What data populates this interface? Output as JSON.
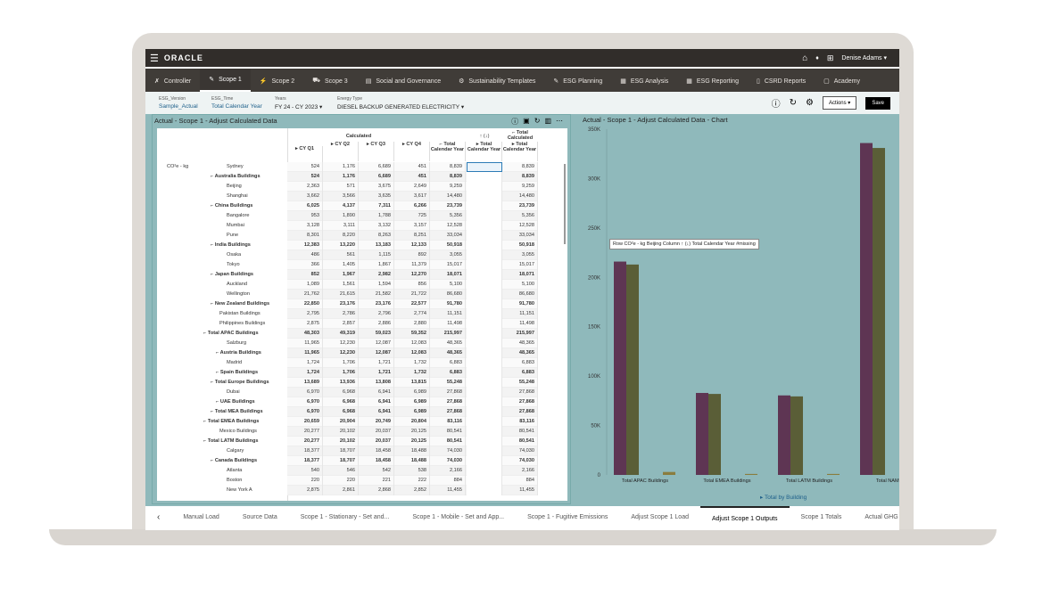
{
  "header": {
    "brand": "ORACLE",
    "user": "Denise Adams ▾"
  },
  "nav": {
    "tabs": [
      {
        "label": "Controller",
        "icon": "✗"
      },
      {
        "label": "Scope 1",
        "icon": "✎",
        "active": true
      },
      {
        "label": "Scope 2",
        "icon": "⚡"
      },
      {
        "label": "Scope 3",
        "icon": "⛟"
      },
      {
        "label": "Social and Governance",
        "icon": "▤"
      },
      {
        "label": "Sustainability Templates",
        "icon": "⚙"
      },
      {
        "label": "ESG Planning",
        "icon": "✎"
      },
      {
        "label": "ESG Analysis",
        "icon": "▦"
      },
      {
        "label": "ESG Reporting",
        "icon": "▦"
      },
      {
        "label": "CSRD Reports",
        "icon": "▯"
      },
      {
        "label": "Academy",
        "icon": "▢"
      }
    ]
  },
  "pov": {
    "items": [
      {
        "label": "ESG_Version",
        "value": "Sample_Actual"
      },
      {
        "label": "ESG_Time",
        "value": "Total Calendar Year"
      },
      {
        "label": "Years",
        "value": "FY 24 - CY 2023 ▾"
      },
      {
        "label": "Energy Type",
        "value": "DIESEL BACKUP GENERATED ELECTRICITY ▾"
      }
    ],
    "actions": "Actions ▾",
    "save": "Save"
  },
  "grid": {
    "title": "Actual - Scope 1 - Adjust Calculated Data",
    "row_dim": "CO²e - kg",
    "group_header": "Calculated",
    "columns": [
      "▸ CY Q1",
      "▸ CY Q2",
      "▸ CY Q3",
      "▸ CY Q4",
      "⌐ Total Calendar Year",
      "▸ Total Calendar Year",
      "▸ Total Calendar Year"
    ],
    "col6_top": "↑ (↓)",
    "col7_top": "⌐ Total Calculated",
    "rows": [
      {
        "name": "Sydney",
        "lvl": 3,
        "b": false,
        "v": [
          "524",
          "1,176",
          "6,689",
          "451",
          "8,839",
          "",
          "8,839"
        ]
      },
      {
        "name": "Australia Buildings",
        "lvl": 2,
        "b": true,
        "v": [
          "524",
          "1,176",
          "6,689",
          "451",
          "8,839",
          "",
          "8,839"
        ]
      },
      {
        "name": "Beijing",
        "lvl": 3,
        "b": false,
        "v": [
          "2,363",
          "571",
          "3,675",
          "2,649",
          "9,259",
          "",
          "9,259"
        ]
      },
      {
        "name": "Shanghai",
        "lvl": 3,
        "b": false,
        "v": [
          "3,662",
          "3,566",
          "3,635",
          "3,617",
          "14,480",
          "",
          "14,480"
        ]
      },
      {
        "name": "China Buildings",
        "lvl": 2,
        "b": true,
        "v": [
          "6,025",
          "4,137",
          "7,311",
          "6,266",
          "23,739",
          "",
          "23,739"
        ]
      },
      {
        "name": "Bangalore",
        "lvl": 3,
        "b": false,
        "v": [
          "953",
          "1,890",
          "1,788",
          "725",
          "5,356",
          "",
          "5,356"
        ]
      },
      {
        "name": "Mumbai",
        "lvl": 3,
        "b": false,
        "v": [
          "3,128",
          "3,111",
          "3,132",
          "3,157",
          "12,528",
          "",
          "12,528"
        ]
      },
      {
        "name": "Pune",
        "lvl": 3,
        "b": false,
        "v": [
          "8,301",
          "8,220",
          "8,263",
          "8,251",
          "33,034",
          "",
          "33,034"
        ]
      },
      {
        "name": "India Buildings",
        "lvl": 2,
        "b": true,
        "v": [
          "12,383",
          "13,220",
          "13,183",
          "12,133",
          "50,918",
          "",
          "50,918"
        ]
      },
      {
        "name": "Osaka",
        "lvl": 3,
        "b": false,
        "v": [
          "486",
          "561",
          "1,115",
          "892",
          "3,055",
          "",
          "3,055"
        ]
      },
      {
        "name": "Tokyo",
        "lvl": 3,
        "b": false,
        "v": [
          "366",
          "1,405",
          "1,867",
          "11,379",
          "15,017",
          "",
          "15,017"
        ]
      },
      {
        "name": "Japan Buildings",
        "lvl": 2,
        "b": true,
        "v": [
          "852",
          "1,967",
          "2,982",
          "12,270",
          "18,071",
          "",
          "18,071"
        ]
      },
      {
        "name": "Auckland",
        "lvl": 3,
        "b": false,
        "v": [
          "1,089",
          "1,561",
          "1,594",
          "856",
          "5,100",
          "",
          "5,100"
        ]
      },
      {
        "name": "Wellington",
        "lvl": 3,
        "b": false,
        "v": [
          "21,762",
          "21,615",
          "21,582",
          "21,722",
          "86,680",
          "",
          "86,680"
        ]
      },
      {
        "name": "New Zealand Buildings",
        "lvl": 2,
        "b": true,
        "v": [
          "22,850",
          "23,176",
          "23,176",
          "22,577",
          "91,780",
          "",
          "91,780"
        ]
      },
      {
        "name": "Pakistan Buildings",
        "lvl": 2.5,
        "b": false,
        "v": [
          "2,795",
          "2,786",
          "2,796",
          "2,774",
          "11,151",
          "",
          "11,151"
        ]
      },
      {
        "name": "Philippines Buildings",
        "lvl": 2.5,
        "b": false,
        "v": [
          "2,875",
          "2,857",
          "2,886",
          "2,880",
          "11,498",
          "",
          "11,498"
        ]
      },
      {
        "name": "Total APAC Buildings",
        "lvl": 1,
        "b": true,
        "v": [
          "48,303",
          "49,319",
          "59,023",
          "59,352",
          "215,997",
          "",
          "215,997"
        ]
      },
      {
        "name": "Salzburg",
        "lvl": 3,
        "b": false,
        "v": [
          "11,965",
          "12,230",
          "12,087",
          "12,083",
          "48,365",
          "",
          "48,365"
        ]
      },
      {
        "name": "Austria Buildings",
        "lvl": 2.3,
        "b": true,
        "v": [
          "11,965",
          "12,230",
          "12,087",
          "12,083",
          "48,365",
          "",
          "48,365"
        ]
      },
      {
        "name": "Madrid",
        "lvl": 3,
        "b": false,
        "v": [
          "1,724",
          "1,706",
          "1,721",
          "1,732",
          "6,883",
          "",
          "6,883"
        ]
      },
      {
        "name": "Spain Buildings",
        "lvl": 2.3,
        "b": true,
        "v": [
          "1,724",
          "1,706",
          "1,721",
          "1,732",
          "6,883",
          "",
          "6,883"
        ]
      },
      {
        "name": "Total Europe Buildings",
        "lvl": 2,
        "b": true,
        "v": [
          "13,689",
          "13,936",
          "13,808",
          "13,815",
          "55,248",
          "",
          "55,248"
        ]
      },
      {
        "name": "Dubai",
        "lvl": 3,
        "b": false,
        "v": [
          "6,970",
          "6,968",
          "6,941",
          "6,989",
          "27,868",
          "",
          "27,868"
        ]
      },
      {
        "name": "UAE Buildings",
        "lvl": 2.3,
        "b": true,
        "v": [
          "6,970",
          "6,968",
          "6,941",
          "6,989",
          "27,868",
          "",
          "27,868"
        ]
      },
      {
        "name": "Total MEA Buildings",
        "lvl": 2,
        "b": true,
        "v": [
          "6,970",
          "6,968",
          "6,941",
          "6,989",
          "27,868",
          "",
          "27,868"
        ]
      },
      {
        "name": "Total EMEA Buildings",
        "lvl": 1,
        "b": true,
        "v": [
          "20,659",
          "20,904",
          "20,749",
          "20,804",
          "83,116",
          "",
          "83,116"
        ]
      },
      {
        "name": "Mexico Buildings",
        "lvl": 2.5,
        "b": false,
        "v": [
          "20,277",
          "20,102",
          "20,037",
          "20,125",
          "80,541",
          "",
          "80,541"
        ]
      },
      {
        "name": "Total LATM Buildings",
        "lvl": 1,
        "b": true,
        "v": [
          "20,277",
          "20,102",
          "20,037",
          "20,125",
          "80,541",
          "",
          "80,541"
        ]
      },
      {
        "name": "Calgary",
        "lvl": 3,
        "b": false,
        "v": [
          "18,377",
          "18,707",
          "18,458",
          "18,488",
          "74,030",
          "",
          "74,030"
        ]
      },
      {
        "name": "Canada Buildings",
        "lvl": 2,
        "b": true,
        "v": [
          "18,377",
          "18,707",
          "18,458",
          "18,488",
          "74,030",
          "",
          "74,030"
        ]
      },
      {
        "name": "Atlanta",
        "lvl": 3,
        "b": false,
        "v": [
          "540",
          "546",
          "542",
          "538",
          "2,166",
          "",
          "2,166"
        ]
      },
      {
        "name": "Boston",
        "lvl": 3,
        "b": false,
        "v": [
          "220",
          "220",
          "221",
          "222",
          "884",
          "",
          "884"
        ]
      },
      {
        "name": "New York A",
        "lvl": 3,
        "b": false,
        "v": [
          "2,875",
          "2,861",
          "2,868",
          "2,852",
          "11,455",
          "",
          "11,455"
        ]
      }
    ],
    "tooltip": "Row CO²e - kg Beijing Column ↑ (↓) Total Calendar Year #missing"
  },
  "chart_data": {
    "type": "bar",
    "title": "Actual - Scope 1 - Adjust Calculated Data - Chart",
    "categories": [
      "Total APAC Buildings",
      "Total EMEA Buildings",
      "Total LATM Buildings",
      "Total NAM Bu"
    ],
    "series": [
      {
        "values": [
          216000,
          83000,
          80500,
          336000
        ],
        "color": "#5e3553"
      },
      {
        "values": [
          213000,
          82000,
          79500,
          331000
        ],
        "color": "#5a5e37"
      },
      {
        "values": [
          3000,
          1000,
          1000,
          null
        ],
        "color": "#8a7d3e"
      }
    ],
    "yticks": [
      "0",
      "50K",
      "100K",
      "150K",
      "200K",
      "250K",
      "300K",
      "350K"
    ],
    "ylim": [
      0,
      350000
    ],
    "legend": "▸ Total by Building",
    "grid": false
  },
  "bottom_tabs": [
    "Manual Load",
    "Source Data",
    "Scope 1 - Stationary - Set and...",
    "Scope 1 - Mobile - Set and App...",
    "Scope 1 - Fugitive Emissions",
    "Adjust Scope 1 Load",
    "Adjust Scope 1 Outputs",
    "Scope 1 Totals",
    "Actual GHG - Scope"
  ],
  "active_bottom_tab": "Adjust Scope 1 Outputs"
}
